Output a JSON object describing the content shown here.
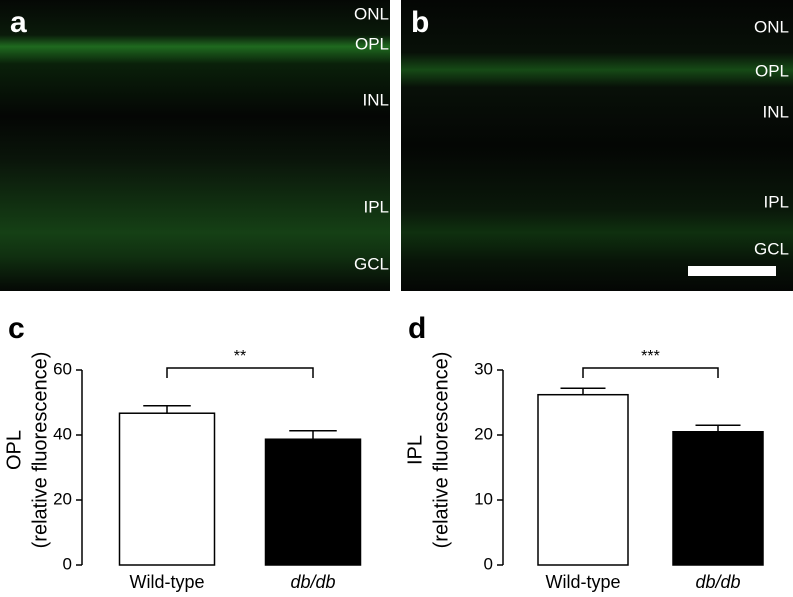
{
  "panels": [
    {
      "letter": "a",
      "layers": [
        "ONL",
        "OPL",
        "INL",
        "IPL",
        "GCL"
      ]
    },
    {
      "letter": "b",
      "layers": [
        "ONL",
        "OPL",
        "INL",
        "IPL",
        "GCL"
      ]
    }
  ],
  "chart_data": [
    {
      "type": "bar",
      "letter": "c",
      "ylabel": [
        "OPL",
        "(relative fluorescence)"
      ],
      "categories": [
        "Wild-type",
        "db/db"
      ],
      "category_italic": [
        false,
        true
      ],
      "values": [
        46.7,
        38.7
      ],
      "errors": [
        2.3,
        2.6
      ],
      "colors": [
        "#ffffff",
        "#000000"
      ],
      "ylim": [
        0,
        60
      ],
      "yticks": [
        0,
        20,
        40,
        60
      ],
      "significance": "**"
    },
    {
      "type": "bar",
      "letter": "d",
      "ylabel": [
        "IPL",
        "(relative fluorescence)"
      ],
      "categories": [
        "Wild-type",
        "db/db"
      ],
      "category_italic": [
        false,
        true
      ],
      "values": [
        26.2,
        20.5
      ],
      "errors": [
        1.0,
        1.0
      ],
      "colors": [
        "#ffffff",
        "#000000"
      ],
      "ylim": [
        0,
        30
      ],
      "yticks": [
        0,
        10,
        20,
        30
      ],
      "significance": "***"
    }
  ]
}
